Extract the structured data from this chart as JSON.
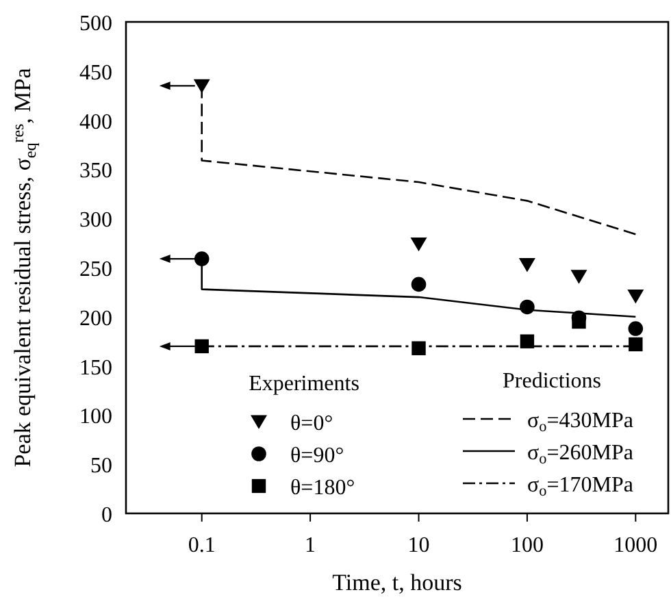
{
  "chart_data": {
    "type": "scatter",
    "xlabel": "Time, t, hours",
    "ylabel": "Peak equivalent residual stress, σ$_{eq}$$^{res}$, MPa",
    "legend_title": [
      "Experiments",
      "Predictions"
    ],
    "log": "x",
    "xlim": [
      0.02,
      2000
    ],
    "xticks": [
      0.1,
      1,
      10,
      100,
      1000
    ],
    "ylim": [
      0,
      500
    ],
    "yticks": [
      0,
      50,
      100,
      150,
      200,
      250,
      300,
      350,
      400,
      450,
      500
    ],
    "grid": false,
    "legend": "bottom",
    "series": [
      {
        "name": "θ=0°",
        "marker": "triangle",
        "color": "#000000",
        "x": [
          0.1,
          10,
          100,
          300,
          1000
        ],
        "values": [
          435,
          274,
          253,
          241,
          221
        ]
      },
      {
        "name": "θ=90°",
        "marker": "circle",
        "color": "#000000",
        "x": [
          0.1,
          10,
          100,
          300,
          1000
        ],
        "values": [
          259,
          233,
          210,
          199,
          188
        ]
      },
      {
        "name": "θ=180°",
        "marker": "square",
        "color": "#000000",
        "x": [
          0.1,
          10,
          100,
          300,
          1000
        ],
        "values": [
          170,
          168,
          175,
          195,
          172
        ]
      },
      {
        "name": "σ$_{o}$=430MPa",
        "type": "line",
        "line_style": "dashed",
        "color": "#000000",
        "x": [
          0.1,
          0.1,
          10,
          100,
          1000
        ],
        "values": [
          435,
          359,
          337,
          318,
          284
        ]
      },
      {
        "name": "σ$_{o}$=260MPa",
        "type": "line",
        "line_style": "solid",
        "color": "#000000",
        "x": [
          0.1,
          0.1,
          10,
          100,
          1000
        ],
        "values": [
          259,
          228,
          220,
          207,
          200
        ]
      },
      {
        "name": "σ$_{o}$=170MPa",
        "type": "line",
        "line_style": "dashdot",
        "color": "#000000",
        "x": [
          0.1,
          1000
        ],
        "values": [
          170,
          170
        ]
      }
    ]
  }
}
